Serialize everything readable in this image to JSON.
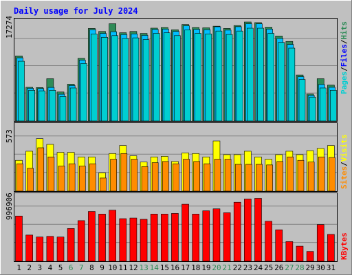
{
  "chart_data": [
    {
      "type": "bar",
      "title": "Daily usage for July 2024",
      "ylabel_parts": [
        "Pages",
        "Files",
        "Hits"
      ],
      "ylabel_separator": "/",
      "ymax_label": "17274",
      "ylim": [
        0,
        17274
      ],
      "categories": [
        "1",
        "2",
        "3",
        "4",
        "5",
        "6",
        "7",
        "8",
        "9",
        "10",
        "11",
        "12",
        "13",
        "14",
        "15",
        "16",
        "17",
        "18",
        "19",
        "20",
        "21",
        "22",
        "23",
        "24",
        "25",
        "26",
        "27",
        "28",
        "29",
        "30",
        "31"
      ],
      "weekend_days": [
        "6",
        "7",
        "13",
        "14",
        "20",
        "21",
        "27",
        "28"
      ],
      "series": [
        {
          "name": "Hits",
          "color": "#2e8b57",
          "values": [
            11430,
            5920,
            5870,
            7430,
            5100,
            6470,
            11010,
            16260,
            15730,
            17090,
            15510,
            15730,
            15380,
            16310,
            16430,
            16030,
            16950,
            16430,
            16380,
            16650,
            16260,
            16770,
            17390,
            17280,
            16480,
            14930,
            13980,
            8080,
            4730,
            7430,
            6300
          ]
        },
        {
          "name": "Files",
          "color": "#00bfff",
          "values": [
            11100,
            5750,
            5700,
            5900,
            4700,
            6240,
            10700,
            16040,
            15390,
            15690,
            15190,
            15300,
            15050,
            16100,
            16150,
            15750,
            16720,
            16100,
            16050,
            16550,
            15960,
            16560,
            17080,
            17070,
            16150,
            14500,
            13450,
            7780,
            4520,
            6410,
            5920
          ]
        },
        {
          "name": "Pages",
          "color": "#00ced1",
          "values": [
            10500,
            5400,
            5300,
            5400,
            4300,
            5800,
            10100,
            15300,
            14700,
            15000,
            14500,
            14600,
            14300,
            15400,
            15500,
            15000,
            16000,
            15400,
            15300,
            15800,
            15200,
            15800,
            16300,
            16300,
            15400,
            13800,
            12800,
            7300,
            4200,
            5800,
            5400
          ]
        }
      ]
    },
    {
      "type": "bar",
      "ylabel_parts": [
        "Sites",
        "Visits"
      ],
      "ylabel_separator": "/",
      "ymax_label": "573",
      "ylim": [
        0,
        573
      ],
      "series": [
        {
          "name": "Visits",
          "color": "#ffff00",
          "values": [
            270,
            350,
            460,
            410,
            340,
            340,
            300,
            300,
            160,
            330,
            400,
            310,
            255,
            300,
            305,
            260,
            335,
            330,
            300,
            440,
            320,
            320,
            350,
            300,
            280,
            320,
            350,
            320,
            355,
            375,
            400
          ]
        },
        {
          "name": "Sites",
          "color": "#ff8c00",
          "values": [
            240,
            200,
            380,
            300,
            220,
            240,
            220,
            240,
            115,
            280,
            330,
            280,
            215,
            250,
            260,
            240,
            280,
            260,
            240,
            280,
            280,
            235,
            235,
            235,
            230,
            260,
            300,
            270,
            255,
            300,
            295
          ]
        }
      ]
    },
    {
      "type": "bar",
      "ylabel_parts": [
        "KBytes"
      ],
      "ymax_label": "996906",
      "ylim": [
        0,
        996906
      ],
      "series": [
        {
          "name": "KBytes",
          "color": "#ff0000",
          "values": [
            690000,
            400000,
            370000,
            380000,
            370000,
            500000,
            620000,
            760000,
            720000,
            780000,
            650000,
            660000,
            640000,
            720000,
            720000,
            730000,
            870000,
            720000,
            770000,
            800000,
            740000,
            900000,
            950000,
            960000,
            610000,
            480000,
            300000,
            230000,
            150000,
            560000,
            410000
          ]
        }
      ]
    }
  ]
}
